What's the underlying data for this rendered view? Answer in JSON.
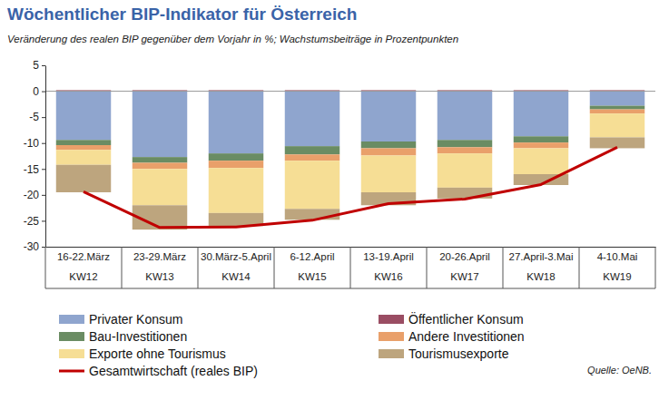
{
  "chart_data": {
    "type": "bar",
    "title": "Wöchentlicher BIP-Indikator für Österreich",
    "subtitle": "Veränderung des realen BIP gegenüber dem Vorjahr in %; Wachstumsbeiträge in Prozentpunkten",
    "source": "Quelle: OeNB.",
    "stacked": true,
    "grid": false,
    "legend": "bottom",
    "categories": [
      [
        "16-22.März",
        "KW12"
      ],
      [
        "23-29.März",
        "KW13"
      ],
      [
        "30.März-5.April",
        "KW14"
      ],
      [
        "6-12.April",
        "KW15"
      ],
      [
        "13-19.April",
        "KW16"
      ],
      [
        "20-26.April",
        "KW17"
      ],
      [
        "27.April-3.Mai",
        "KW18"
      ],
      [
        "4-10.Mai",
        "KW19"
      ]
    ],
    "ylim": [
      -30,
      5
    ],
    "yticks": [
      -30,
      -25,
      -20,
      -15,
      -10,
      -5,
      0,
      5
    ],
    "series": [
      {
        "name": "Privater Konsum",
        "type": "bar",
        "color": "#8FA5CE",
        "values": [
          -9.4,
          -12.7,
          -12.0,
          -10.6,
          -9.7,
          -9.4,
          -8.7,
          -2.8
        ]
      },
      {
        "name": "Öffentlicher Konsum",
        "type": "bar",
        "color": "#9A4D63",
        "values": [
          0.2,
          0.2,
          0.2,
          0.2,
          0.2,
          0.2,
          0.2,
          0.2
        ]
      },
      {
        "name": "Bau-Investitionen",
        "type": "bar",
        "color": "#6A8C63",
        "values": [
          -1.0,
          -1.1,
          -1.4,
          -1.6,
          -1.3,
          -1.4,
          -1.2,
          -0.7
        ]
      },
      {
        "name": "Andere Investitionen",
        "type": "bar",
        "color": "#E9A06A",
        "values": [
          -0.9,
          -1.2,
          -1.4,
          -1.2,
          -1.4,
          -1.2,
          -1.1,
          -0.8
        ]
      },
      {
        "name": "Exporte ohne Tourismus",
        "type": "bar",
        "color": "#F6DE95",
        "values": [
          -2.9,
          -7.0,
          -8.7,
          -9.3,
          -7.1,
          -6.6,
          -5.0,
          -4.6
        ]
      },
      {
        "name": "Tourismusexporte",
        "type": "bar",
        "color": "#BDA57E",
        "values": [
          -5.3,
          -4.7,
          -2.5,
          -2.1,
          -2.5,
          -2.1,
          -2.1,
          -2.1
        ]
      },
      {
        "name": "Gesamtwirtschaft (reales BIP)",
        "type": "line",
        "color": "#C00000",
        "values": [
          -19.4,
          -26.3,
          -26.2,
          -24.9,
          -21.7,
          -20.8,
          -18.0,
          -10.8
        ]
      }
    ]
  }
}
